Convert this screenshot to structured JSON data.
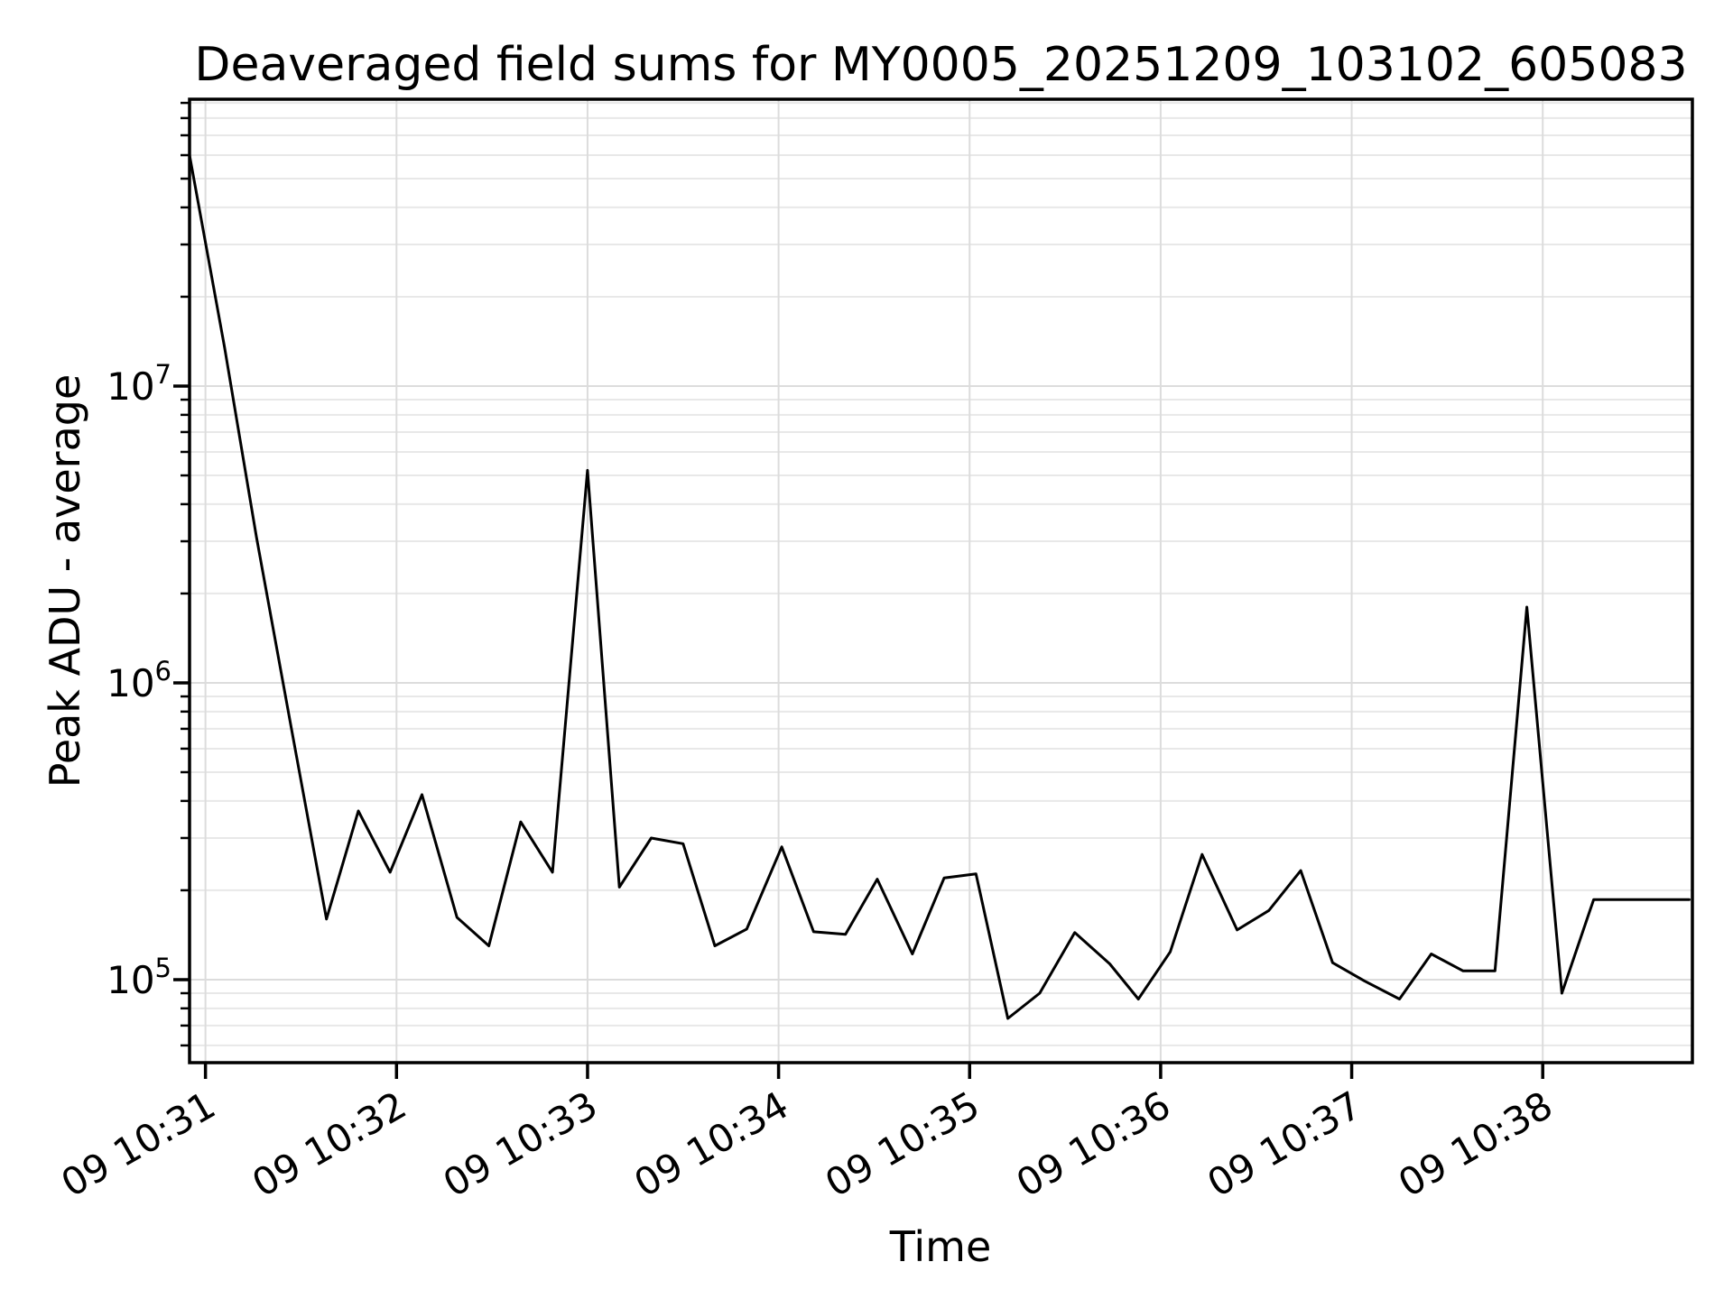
{
  "chart_data": {
    "type": "line",
    "title": "Deaveraged field sums for MY0005_20251209_103102_605083",
    "xlabel": "Time",
    "ylabel": "Peak ADU - average",
    "yscale": "log",
    "grid": "both",
    "legend": "none",
    "background_color": "#ffffff",
    "line_color": "#000000",
    "spine_color": "#000000",
    "grid_major_color": "#dcdcdc",
    "grid_minor_color": "#e8e8e8",
    "xlim": [
      "10:30:55",
      "10:38:47"
    ],
    "ylim": [
      52500,
      92600000
    ],
    "y_major_ticks": [
      100000,
      1000000,
      10000000
    ],
    "y_tick_labels": [
      "10^5",
      "10^6",
      "10^7"
    ],
    "x_ticks": [
      {
        "time": "10:31:00",
        "label": "09 10:31"
      },
      {
        "time": "10:32:00",
        "label": "09 10:32"
      },
      {
        "time": "10:33:00",
        "label": "09 10:33"
      },
      {
        "time": "10:34:00",
        "label": "09 10:34"
      },
      {
        "time": "10:35:00",
        "label": "09 10:35"
      },
      {
        "time": "10:36:00",
        "label": "09 10:36"
      },
      {
        "time": "10:37:00",
        "label": "09 10:37"
      },
      {
        "time": "10:38:00",
        "label": "09 10:38"
      }
    ],
    "series": [
      {
        "name": "Peak ADU - average",
        "points": [
          [
            "10:30:55",
            60000000
          ],
          [
            "10:31:06",
            13500000
          ],
          [
            "10:31:16",
            3100000
          ],
          [
            "10:31:27",
            700000
          ],
          [
            "10:31:38",
            160000
          ],
          [
            "10:31:48",
            370000
          ],
          [
            "10:31:58",
            230000
          ],
          [
            "10:32:08",
            420000
          ],
          [
            "10:32:19",
            162000
          ],
          [
            "10:32:29",
            130000
          ],
          [
            "10:32:39",
            340000
          ],
          [
            "10:32:49",
            230000
          ],
          [
            "10:33:00",
            5200000
          ],
          [
            "10:33:10",
            205000
          ],
          [
            "10:33:20",
            300000
          ],
          [
            "10:33:30",
            287000
          ],
          [
            "10:33:40",
            130000
          ],
          [
            "10:33:50",
            148000
          ],
          [
            "10:34:01",
            280000
          ],
          [
            "10:34:11",
            145000
          ],
          [
            "10:34:21",
            142000
          ],
          [
            "10:34:31",
            218000
          ],
          [
            "10:34:42",
            122000
          ],
          [
            "10:34:52",
            220000
          ],
          [
            "10:35:02",
            227000
          ],
          [
            "10:35:12",
            74000
          ],
          [
            "10:35:22",
            90000
          ],
          [
            "10:35:33",
            144000
          ],
          [
            "10:35:44",
            113000
          ],
          [
            "10:35:53",
            86000
          ],
          [
            "10:36:03",
            124000
          ],
          [
            "10:36:13",
            264000
          ],
          [
            "10:36:24",
            147000
          ],
          [
            "10:36:34",
            171000
          ],
          [
            "10:36:44",
            233000
          ],
          [
            "10:36:54",
            114000
          ],
          [
            "10:37:04",
            99000
          ],
          [
            "10:37:15",
            86000
          ],
          [
            "10:37:25",
            122000
          ],
          [
            "10:37:35",
            107000
          ],
          [
            "10:37:45",
            107000
          ],
          [
            "10:37:55",
            1800000
          ],
          [
            "10:38:06",
            90000
          ],
          [
            "10:38:16",
            186000
          ],
          [
            "10:38:26",
            186000
          ],
          [
            "10:38:36",
            186000
          ],
          [
            "10:38:46",
            186000
          ]
        ]
      }
    ]
  }
}
